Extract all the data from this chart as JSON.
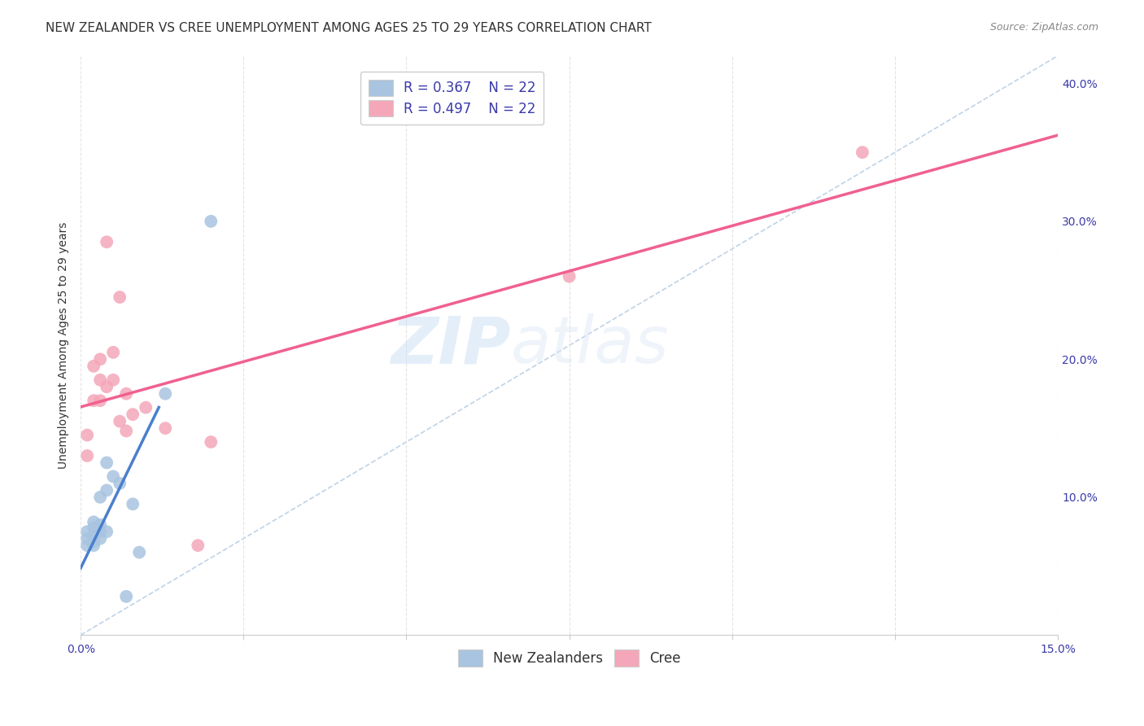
{
  "title": "NEW ZEALANDER VS CREE UNEMPLOYMENT AMONG AGES 25 TO 29 YEARS CORRELATION CHART",
  "source": "Source: ZipAtlas.com",
  "ylabel": "Unemployment Among Ages 25 to 29 years",
  "xlim": [
    0.0,
    0.15
  ],
  "ylim": [
    0.0,
    0.42
  ],
  "xticks": [
    0.0,
    0.025,
    0.05,
    0.075,
    0.1,
    0.125,
    0.15
  ],
  "xticklabels": [
    "0.0%",
    "",
    "",
    "",
    "",
    "",
    "15.0%"
  ],
  "yticks_right": [
    0.0,
    0.1,
    0.2,
    0.3,
    0.4
  ],
  "yticklabels_right": [
    "",
    "10.0%",
    "20.0%",
    "30.0%",
    "40.0%"
  ],
  "legend_labels": [
    "New Zealanders",
    "Cree"
  ],
  "nz_color": "#a8c4e0",
  "cree_color": "#f4a7b9",
  "nz_line_color": "#4a7fcc",
  "cree_line_color": "#f06090",
  "diagonal_color": "#b0c8e0",
  "watermark_zip": "ZIP",
  "watermark_atlas": "atlas",
  "nz_x": [
    0.001,
    0.001,
    0.001,
    0.002,
    0.002,
    0.002,
    0.002,
    0.002,
    0.003,
    0.003,
    0.003,
    0.003,
    0.004,
    0.004,
    0.004,
    0.005,
    0.006,
    0.007,
    0.008,
    0.009,
    0.013,
    0.02
  ],
  "nz_y": [
    0.065,
    0.07,
    0.075,
    0.065,
    0.068,
    0.072,
    0.078,
    0.082,
    0.07,
    0.075,
    0.08,
    0.1,
    0.075,
    0.105,
    0.125,
    0.115,
    0.11,
    0.028,
    0.095,
    0.06,
    0.175,
    0.3
  ],
  "cree_x": [
    0.001,
    0.001,
    0.002,
    0.002,
    0.003,
    0.003,
    0.003,
    0.004,
    0.004,
    0.005,
    0.005,
    0.006,
    0.006,
    0.007,
    0.007,
    0.008,
    0.01,
    0.013,
    0.018,
    0.02,
    0.075,
    0.12
  ],
  "cree_y": [
    0.13,
    0.145,
    0.17,
    0.195,
    0.17,
    0.185,
    0.2,
    0.18,
    0.285,
    0.185,
    0.205,
    0.155,
    0.245,
    0.148,
    0.175,
    0.16,
    0.165,
    0.15,
    0.065,
    0.14,
    0.26,
    0.35
  ],
  "nz_line_x": [
    0.001,
    0.01
  ],
  "cree_line_x": [
    0.0,
    0.15
  ],
  "grid_color": "#e0e0e0",
  "background_color": "#ffffff",
  "title_fontsize": 11,
  "axis_label_fontsize": 10,
  "tick_fontsize": 10,
  "legend_fontsize": 12,
  "source_fontsize": 9
}
